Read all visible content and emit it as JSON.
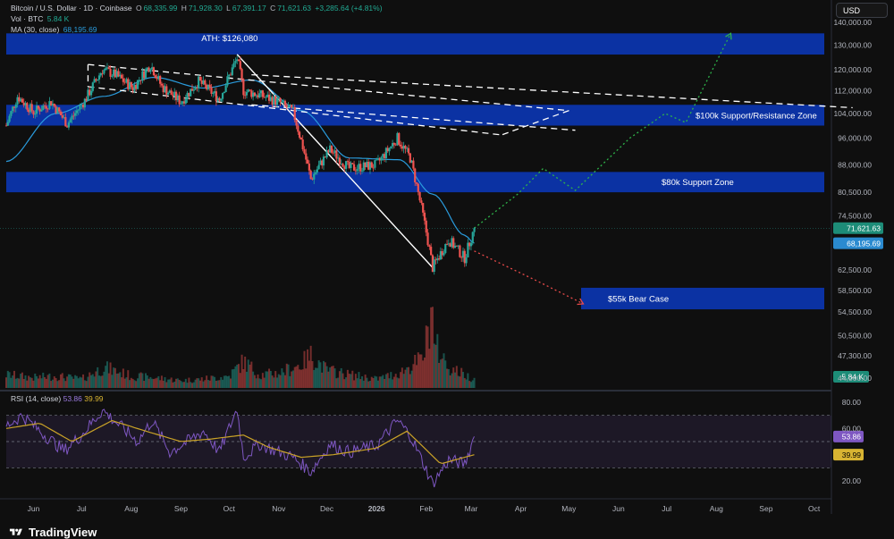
{
  "header": {
    "symbol": "Bitcoin / U.S. Dollar · 1D · Coinbase",
    "open_label": "O",
    "open": "68,335.99",
    "high_label": "H",
    "high": "71,928.30",
    "low_label": "L",
    "low": "67,391.17",
    "close_label": "C",
    "close": "71,621.63",
    "change": "+3,285.64 (+4.81%)",
    "vol_label": "Vol · BTC",
    "vol": "5.84 K",
    "ma_label": "MA (30, close)",
    "ma": "68,195.69",
    "rsi_label": "RSI (14, close)",
    "rsi": "53.86",
    "rsi_ma": "39.99"
  },
  "currency_button": "USD",
  "branding": "TradingView",
  "colors": {
    "zone": "#0b35b0",
    "up": "#26a69a",
    "down": "#ef5350",
    "ma": "#2a9bdc",
    "rsi": "#7e57c2",
    "rsi_ma": "#c9a227",
    "trend_target": "#2eb34a",
    "bear_target": "#e84a4a"
  },
  "chart_data": {
    "type": "candlestick",
    "x_ticks": [
      "Jun",
      "Jul",
      "Aug",
      "Sep",
      "Oct",
      "Nov",
      "Dec",
      "2026",
      "Feb",
      "Mar",
      "Apr",
      "May",
      "Jun",
      "Jul",
      "Aug",
      "Sep",
      "Oct"
    ],
    "y_scale": "log",
    "y_ticks": [
      "140,000.00",
      "130,000.00",
      "120,000.00",
      "112,000.00",
      "104,000.00",
      "96,000.00",
      "88,000.00",
      "80,500.00",
      "74,500.00",
      "62,500.00",
      "58,500.00",
      "54,500.00",
      "50,500.00",
      "47,300.00",
      "44,000.00"
    ],
    "price_labels": {
      "last": "71,621.63",
      "ma": "68,195.69",
      "volume": "5.84 K"
    },
    "zones": [
      {
        "low": 126000,
        "high": 135000,
        "label": ""
      },
      {
        "low": 100000,
        "high": 107000,
        "label": "$100k Support/Resistance Zone"
      },
      {
        "low": 80500,
        "high": 86000,
        "label": "$80k Support Zone"
      },
      {
        "low": 55000,
        "high": 59000,
        "label": "$55k Bear Case"
      }
    ],
    "annotations": [
      {
        "text": "ATH: $126,080",
        "date": "2025-10-06",
        "price": 126080
      }
    ],
    "close_path": [
      [
        "2025-05-15",
        100000
      ],
      [
        "2025-05-22",
        110000
      ],
      [
        "2025-06-01",
        104500
      ],
      [
        "2025-06-12",
        108000
      ],
      [
        "2025-06-22",
        100500
      ],
      [
        "2025-07-03",
        108500
      ],
      [
        "2025-07-14",
        120000
      ],
      [
        "2025-07-22",
        118000
      ],
      [
        "2025-08-02",
        113000
      ],
      [
        "2025-08-13",
        122000
      ],
      [
        "2025-08-20",
        113500
      ],
      [
        "2025-09-01",
        108000
      ],
      [
        "2025-09-12",
        115500
      ],
      [
        "2025-09-25",
        109000
      ],
      [
        "2025-10-06",
        124500
      ],
      [
        "2025-10-10",
        112000
      ],
      [
        "2025-10-20",
        110500
      ],
      [
        "2025-11-01",
        108000
      ],
      [
        "2025-11-10",
        104500
      ],
      [
        "2025-11-21",
        84000
      ],
      [
        "2025-12-03",
        92500
      ],
      [
        "2025-12-15",
        87000
      ],
      [
        "2026-01-01",
        88000
      ],
      [
        "2026-01-14",
        96000
      ],
      [
        "2026-01-22",
        90000
      ],
      [
        "2026-02-05",
        63000
      ],
      [
        "2026-02-15",
        69000
      ],
      [
        "2026-02-25",
        65000
      ],
      [
        "2026-03-03",
        71621.63
      ]
    ],
    "moving_average": {
      "name": "MA (30, close)",
      "points": [
        [
          "2025-05-15",
          89000
        ],
        [
          "2025-06-15",
          104000
        ],
        [
          "2025-07-15",
          110000
        ],
        [
          "2025-08-15",
          117000
        ],
        [
          "2025-09-15",
          113000
        ],
        [
          "2025-10-15",
          116000
        ],
        [
          "2025-11-15",
          105000
        ],
        [
          "2025-12-15",
          90000
        ],
        [
          "2026-01-15",
          89500
        ],
        [
          "2026-02-05",
          80000
        ],
        [
          "2026-02-25",
          70000
        ],
        [
          "2026-03-03",
          68195.69
        ]
      ]
    },
    "trendlines": [
      {
        "style": "dashed",
        "from": [
          "2025-07-05",
          122000
        ],
        "to": [
          "2026-05-01",
          105000
        ]
      },
      {
        "style": "dashed",
        "from": [
          "2025-07-05",
          113500
        ],
        "to": [
          "2026-03-20",
          97000
        ]
      },
      {
        "style": "dashed",
        "from": [
          "2025-07-05",
          122000
        ],
        "to": [
          "2025-07-05",
          113500
        ]
      },
      {
        "style": "dashed",
        "from": [
          "2026-05-01",
          105000
        ],
        "to": [
          "2026-03-20",
          97000
        ]
      },
      {
        "style": "dashed",
        "from": [
          "2025-10-15",
          118000
        ],
        "to": [
          "2026-10-25",
          106000
        ]
      },
      {
        "style": "dashed",
        "from": [
          "2025-10-15",
          107000
        ],
        "to": [
          "2026-05-05",
          98500
        ]
      },
      {
        "style": "solid",
        "from": [
          "2025-10-06",
          126080
        ],
        "to": [
          "2026-02-05",
          63000
        ]
      }
    ],
    "projections": [
      {
        "name": "bull",
        "points": [
          [
            "2026-03-03",
            71621.63
          ],
          [
            "2026-03-30",
            80000
          ],
          [
            "2026-04-15",
            87000
          ],
          [
            "2026-05-05",
            81000
          ],
          [
            "2026-06-08",
            96000
          ],
          [
            "2026-06-30",
            104000
          ],
          [
            "2026-07-13",
            101000
          ],
          [
            "2026-08-10",
            135000
          ]
        ]
      },
      {
        "name": "bear",
        "points": [
          [
            "2026-03-03",
            66500
          ],
          [
            "2026-04-10",
            60500
          ],
          [
            "2026-05-10",
            56000
          ]
        ]
      }
    ],
    "volume": {
      "unit": "K BTC",
      "last": 5.84,
      "bars": [
        [
          "2025-05-15",
          9
        ],
        [
          "2025-06-01",
          7
        ],
        [
          "2025-06-15",
          8
        ],
        [
          "2025-07-01",
          6
        ],
        [
          "2025-07-15",
          14
        ],
        [
          "2025-08-01",
          8
        ],
        [
          "2025-08-15",
          7
        ],
        [
          "2025-09-01",
          5
        ],
        [
          "2025-09-15",
          6
        ],
        [
          "2025-10-01",
          8
        ],
        [
          "2025-10-10",
          18
        ],
        [
          "2025-10-20",
          9
        ],
        [
          "2025-11-01",
          10
        ],
        [
          "2025-11-15",
          16
        ],
        [
          "2025-11-21",
          22
        ],
        [
          "2025-12-01",
          12
        ],
        [
          "2025-12-15",
          9
        ],
        [
          "2026-01-01",
          6
        ],
        [
          "2026-01-15",
          10
        ],
        [
          "2026-01-30",
          20
        ],
        [
          "2026-02-05",
          55
        ],
        [
          "2026-02-06",
          30
        ],
        [
          "2026-02-15",
          14
        ],
        [
          "2026-03-03",
          5.84
        ]
      ]
    },
    "rsi": {
      "name": "RSI (14, close)",
      "y_ticks": [
        "80.00",
        "60.00",
        "20.00"
      ],
      "bands": {
        "upper": 70,
        "middle": 50,
        "lower": 30
      },
      "last": 53.86,
      "ma_last": 39.99,
      "points": [
        [
          "2025-05-15",
          62
        ],
        [
          "2025-05-25",
          70
        ],
        [
          "2025-06-05",
          58
        ],
        [
          "2025-06-20",
          43
        ],
        [
          "2025-07-01",
          55
        ],
        [
          "2025-07-14",
          74
        ],
        [
          "2025-07-25",
          62
        ],
        [
          "2025-08-05",
          50
        ],
        [
          "2025-08-14",
          66
        ],
        [
          "2025-08-25",
          42
        ],
        [
          "2025-09-05",
          50
        ],
        [
          "2025-09-15",
          58
        ],
        [
          "2025-09-25",
          42
        ],
        [
          "2025-10-06",
          75
        ],
        [
          "2025-10-10",
          38
        ],
        [
          "2025-10-20",
          48
        ],
        [
          "2025-11-01",
          42
        ],
        [
          "2025-11-10",
          38
        ],
        [
          "2025-11-21",
          27
        ],
        [
          "2025-12-03",
          48
        ],
        [
          "2025-12-15",
          42
        ],
        [
          "2026-01-01",
          47
        ],
        [
          "2026-01-14",
          66
        ],
        [
          "2026-01-22",
          55
        ],
        [
          "2026-02-05",
          18
        ],
        [
          "2026-02-15",
          36
        ],
        [
          "2026-02-25",
          33
        ],
        [
          "2026-03-03",
          53.86
        ]
      ],
      "ma_points": [
        [
          "2025-05-15",
          60
        ],
        [
          "2025-06-05",
          64
        ],
        [
          "2025-06-25",
          50
        ],
        [
          "2025-07-20",
          66
        ],
        [
          "2025-08-10",
          58
        ],
        [
          "2025-09-01",
          50
        ],
        [
          "2025-09-20",
          52
        ],
        [
          "2025-10-10",
          55
        ],
        [
          "2025-10-25",
          46
        ],
        [
          "2025-11-15",
          38
        ],
        [
          "2025-12-05",
          40
        ],
        [
          "2026-01-01",
          45
        ],
        [
          "2026-01-20",
          58
        ],
        [
          "2026-02-10",
          33
        ],
        [
          "2026-03-03",
          39.99
        ]
      ]
    }
  }
}
